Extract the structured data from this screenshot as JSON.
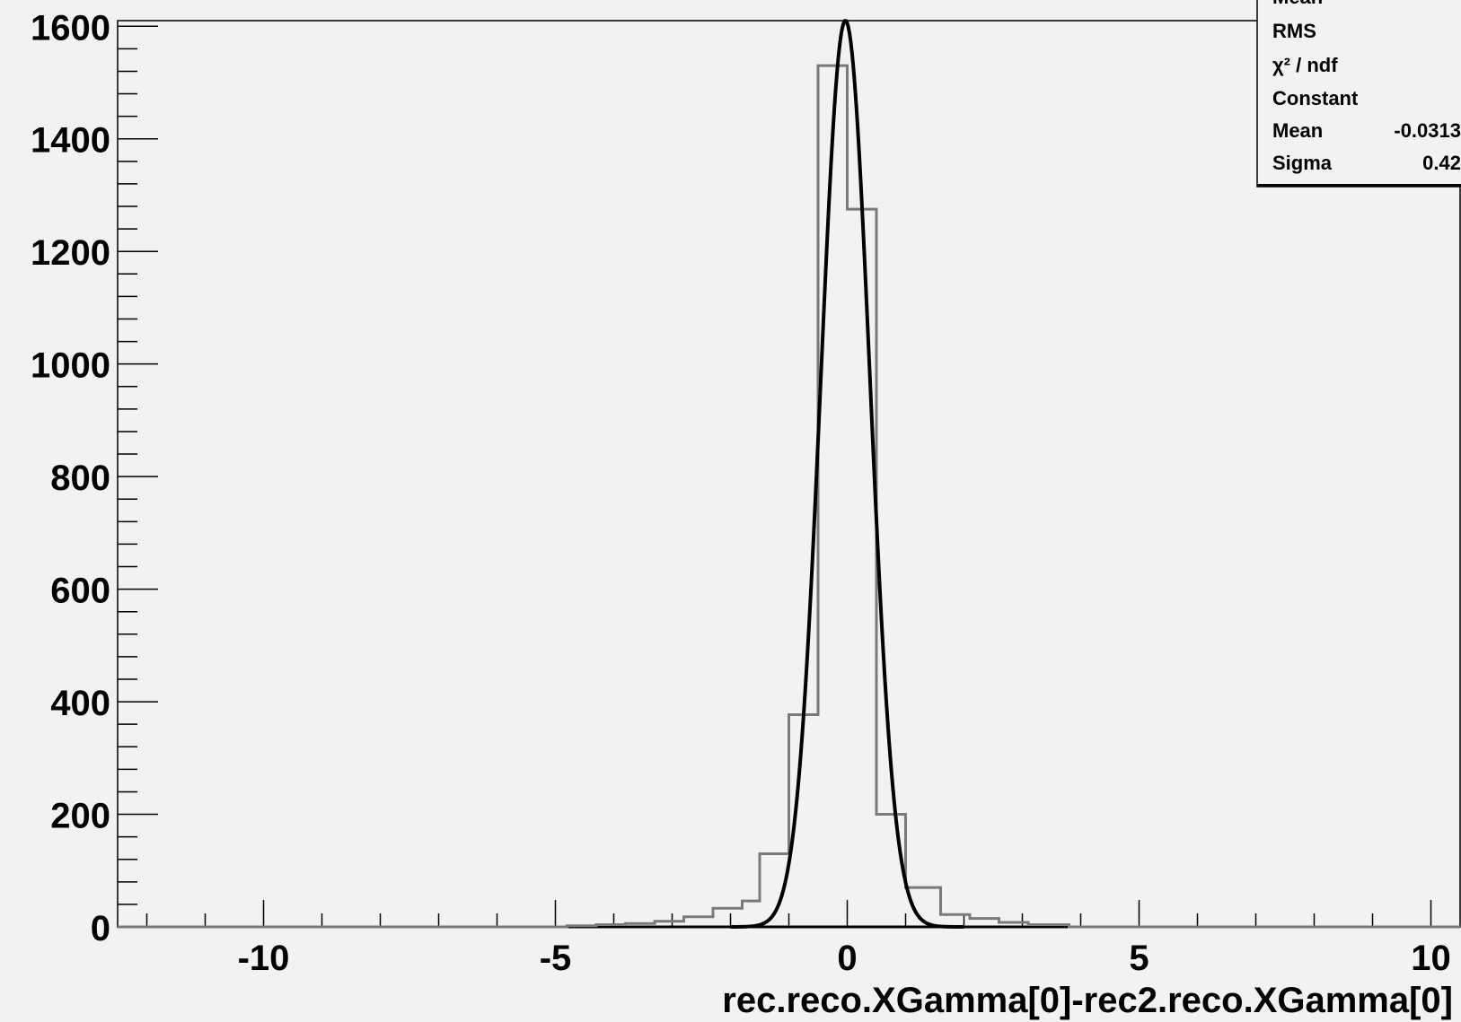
{
  "chart_data": {
    "type": "histogram",
    "title": "",
    "xlabel": "rec.reco.XGamma[0]-rec2.reco.XGamma[0]",
    "ylabel": "",
    "xlim": [
      -12.5,
      10.5
    ],
    "ylim": [
      0,
      1610
    ],
    "x_ticks": [
      "-10",
      "-5",
      "0",
      "5",
      "10"
    ],
    "x_tick_values": [
      -10,
      -5,
      0,
      5,
      10
    ],
    "y_ticks": [
      "0",
      "200",
      "400",
      "600",
      "800",
      "1000",
      "1200",
      "1400",
      "1600"
    ],
    "y_tick_values": [
      0,
      200,
      400,
      600,
      800,
      1000,
      1200,
      1400,
      1600
    ],
    "grid": false,
    "histogram": {
      "name": "",
      "bin_edges": [
        -4.8,
        -4.3,
        -3.8,
        -3.3,
        -2.8,
        -2.3,
        -1.8,
        -1.5,
        -1.0,
        -0.5,
        0.0,
        0.5,
        1.0,
        1.5,
        1.6,
        2.1,
        2.6,
        3.1,
        3.8
      ],
      "values": [
        2,
        4,
        6,
        10,
        18,
        33,
        46,
        130,
        377,
        1530,
        1275,
        200,
        70,
        70,
        22,
        15,
        8,
        4
      ],
      "color": "#7a7a7a"
    },
    "fit": {
      "type": "gaussian",
      "constant": 1610,
      "mean": -0.0313,
      "sigma": 0.42,
      "color": "#000000"
    },
    "stats_box": {
      "rows": [
        {
          "label": "Mean",
          "value": ""
        },
        {
          "label": "RMS",
          "value": ""
        },
        {
          "label": "χ² / ndf",
          "value": ""
        },
        {
          "label": "Constant",
          "value": ""
        },
        {
          "label": "Mean",
          "value": "-0.0313"
        },
        {
          "label": "Sigma",
          "value": "0.42"
        }
      ]
    }
  }
}
